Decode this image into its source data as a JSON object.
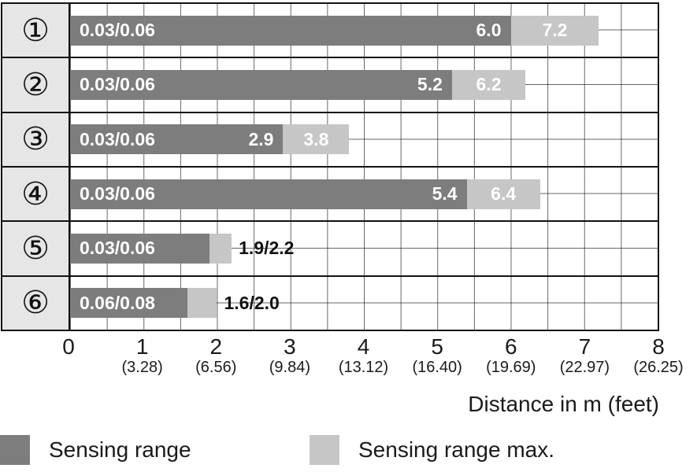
{
  "chart_data": {
    "type": "bar",
    "orientation": "horizontal",
    "title": "",
    "xlabel": "Distance in m (feet)",
    "ylabel": "",
    "xlim": [
      0,
      8
    ],
    "grid": true,
    "colors": {
      "sensing_range": "#7d7d7d",
      "sensing_range_max": "#c6c6c6",
      "row_header_bg": "#e6e6e6"
    },
    "rows": [
      {
        "id": "①",
        "min_label": "0.03/0.06",
        "sensing_range": 6.0,
        "sensing_range_max": 7.2,
        "range_label": "6.0",
        "max_label": "7.2",
        "outside_label": ""
      },
      {
        "id": "②",
        "min_label": "0.03/0.06",
        "sensing_range": 5.2,
        "sensing_range_max": 6.2,
        "range_label": "5.2",
        "max_label": "6.2",
        "outside_label": ""
      },
      {
        "id": "③",
        "min_label": "0.03/0.06",
        "sensing_range": 2.9,
        "sensing_range_max": 3.8,
        "range_label": "2.9",
        "max_label": "3.8",
        "outside_label": ""
      },
      {
        "id": "④",
        "min_label": "0.03/0.06",
        "sensing_range": 5.4,
        "sensing_range_max": 6.4,
        "range_label": "5.4",
        "max_label": "6.4",
        "outside_label": ""
      },
      {
        "id": "⑤",
        "min_label": "0.03/0.06",
        "sensing_range": 1.9,
        "sensing_range_max": 2.2,
        "range_label": "",
        "max_label": "",
        "outside_label": "1.9/2.2"
      },
      {
        "id": "⑥",
        "min_label": "0.06/0.08",
        "sensing_range": 1.6,
        "sensing_range_max": 2.0,
        "range_label": "",
        "max_label": "",
        "outside_label": "1.6/2.0"
      }
    ],
    "x_ticks": [
      {
        "m": "0",
        "feet": ""
      },
      {
        "m": "1",
        "feet": "(3.28)"
      },
      {
        "m": "2",
        "feet": "(6.56)"
      },
      {
        "m": "3",
        "feet": "(9.84)"
      },
      {
        "m": "4",
        "feet": "(13.12)"
      },
      {
        "m": "5",
        "feet": "(16.40)"
      },
      {
        "m": "6",
        "feet": "(19.69)"
      },
      {
        "m": "7",
        "feet": "(22.97)"
      },
      {
        "m": "8",
        "feet": "(26.25)"
      }
    ],
    "legend": [
      {
        "label": "Sensing range",
        "color": "#7d7d7d"
      },
      {
        "label": "Sensing range max.",
        "color": "#c6c6c6"
      }
    ]
  }
}
